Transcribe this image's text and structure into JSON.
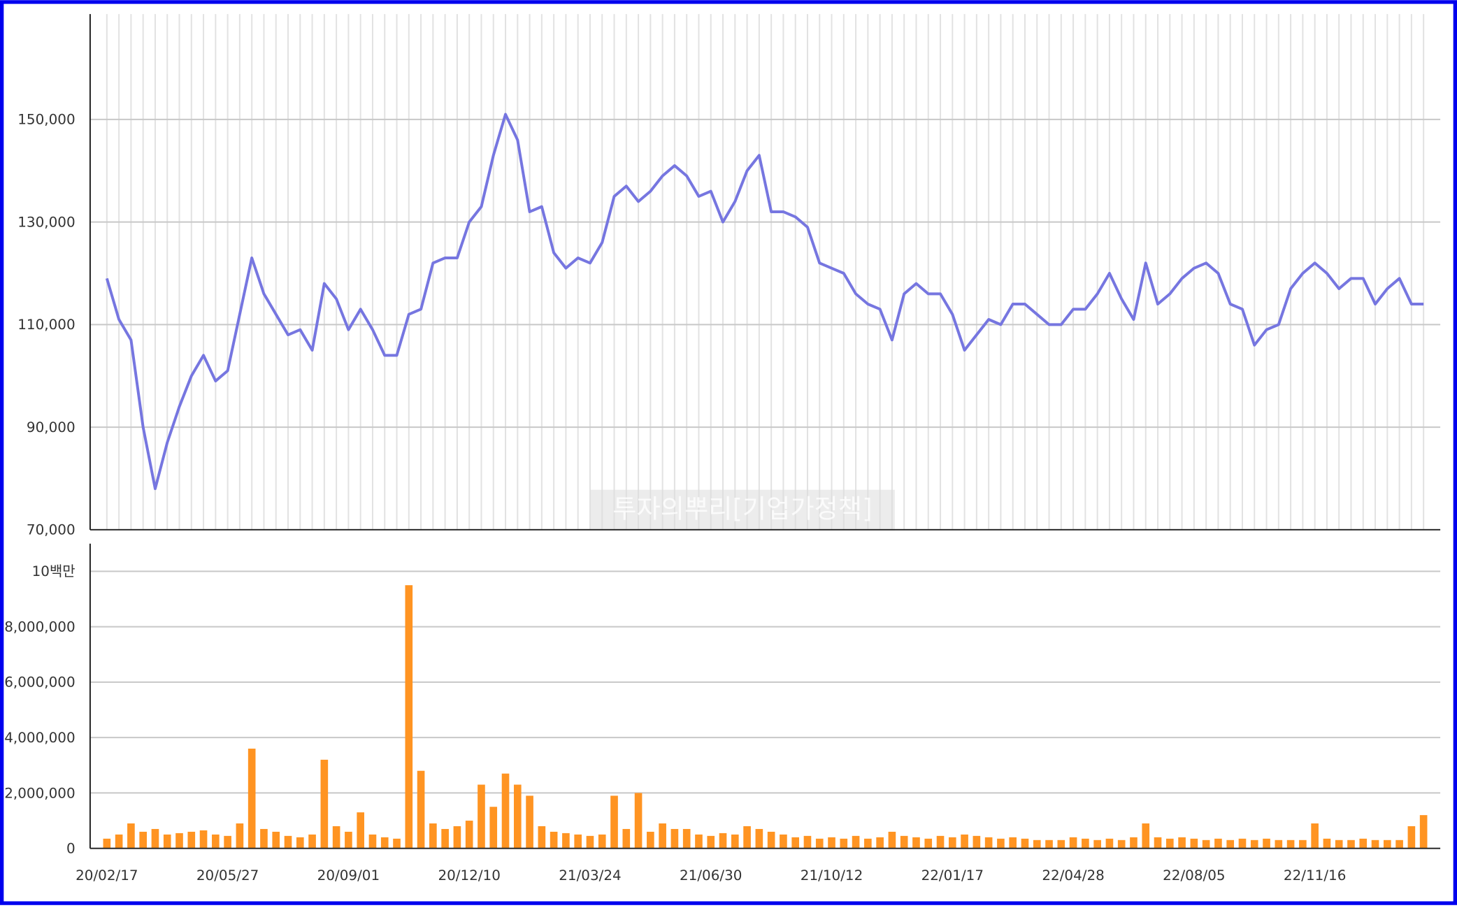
{
  "chart_data": [
    {
      "type": "line",
      "watermark": "투자의뿌리[기업가정책]",
      "categories": [
        "20/02/17",
        null,
        null,
        null,
        null,
        null,
        null,
        null,
        null,
        null,
        "20/05/27",
        null,
        null,
        null,
        null,
        null,
        null,
        null,
        null,
        null,
        "20/09/01",
        null,
        null,
        null,
        null,
        null,
        null,
        null,
        null,
        null,
        "20/12/10",
        null,
        null,
        null,
        null,
        null,
        null,
        null,
        null,
        null,
        "21/03/24",
        null,
        null,
        null,
        null,
        null,
        null,
        null,
        null,
        null,
        "21/06/30",
        null,
        null,
        null,
        null,
        null,
        null,
        null,
        null,
        null,
        "21/10/12",
        null,
        null,
        null,
        null,
        null,
        null,
        null,
        null,
        null,
        "22/01/17",
        null,
        null,
        null,
        null,
        null,
        null,
        null,
        null,
        null,
        "22/04/28",
        null,
        null,
        null,
        null,
        null,
        null,
        null,
        null,
        null,
        "22/08/05",
        null,
        null,
        null,
        null,
        null,
        null,
        null,
        null,
        null,
        "22/11/16",
        null,
        null,
        null,
        null,
        null,
        null,
        null,
        null,
        null
      ],
      "series": [
        {
          "color": "#7676e0",
          "values": [
            119000,
            111000,
            107000,
            90000,
            78000,
            87000,
            94000,
            100000,
            104000,
            99000,
            101000,
            112000,
            123000,
            116000,
            112000,
            108000,
            109000,
            105000,
            118000,
            115000,
            109000,
            113000,
            109000,
            104000,
            104000,
            112000,
            113000,
            122000,
            123000,
            123000,
            130000,
            133000,
            143000,
            151000,
            146000,
            132000,
            133000,
            124000,
            121000,
            123000,
            122000,
            126000,
            135000,
            137000,
            134000,
            136000,
            139000,
            141000,
            139000,
            135000,
            136000,
            130000,
            134000,
            140000,
            143000,
            132000,
            132000,
            131000,
            129000,
            122000,
            121000,
            120000,
            116000,
            114000,
            113000,
            107000,
            116000,
            118000,
            116000,
            116000,
            112000,
            105000,
            108000,
            111000,
            110000,
            114000,
            114000,
            112000,
            110000,
            110000,
            113000,
            113000,
            116000,
            120000,
            115000,
            111000,
            122000,
            114000,
            116000,
            119000,
            121000,
            122000,
            120000,
            114000,
            113000,
            106000,
            109000,
            110000,
            117000,
            120000,
            122000,
            120000,
            117000,
            119000,
            119000,
            114000,
            117000,
            119000,
            114000,
            114000
          ]
        }
      ],
      "ylim": [
        70000,
        170000
      ],
      "yticks": [
        {
          "value": 70000,
          "label": "70,000"
        },
        {
          "value": 90000,
          "label": "90,000"
        },
        {
          "value": 110000,
          "label": "110,000"
        },
        {
          "value": 130000,
          "label": "130,000"
        },
        {
          "value": 150000,
          "label": "150,000"
        }
      ],
      "grid": true
    },
    {
      "type": "bar",
      "series": [
        {
          "color": "#ff9422",
          "values": [
            350000,
            500000,
            900000,
            600000,
            700000,
            500000,
            550000,
            600000,
            650000,
            500000,
            450000,
            900000,
            3600000,
            700000,
            600000,
            450000,
            400000,
            500000,
            3200000,
            800000,
            600000,
            1300000,
            500000,
            400000,
            350000,
            9500000,
            2800000,
            900000,
            700000,
            800000,
            1000000,
            2300000,
            1500000,
            2700000,
            2300000,
            1900000,
            800000,
            600000,
            550000,
            500000,
            450000,
            500000,
            1900000,
            700000,
            2000000,
            600000,
            900000,
            700000,
            700000,
            500000,
            450000,
            550000,
            500000,
            800000,
            700000,
            600000,
            500000,
            400000,
            450000,
            350000,
            400000,
            350000,
            450000,
            350000,
            400000,
            600000,
            450000,
            400000,
            350000,
            450000,
            400000,
            500000,
            450000,
            400000,
            350000,
            400000,
            350000,
            300000,
            300000,
            300000,
            400000,
            350000,
            300000,
            350000,
            300000,
            400000,
            900000,
            400000,
            350000,
            400000,
            350000,
            300000,
            350000,
            300000,
            350000,
            300000,
            350000,
            300000,
            300000,
            300000,
            900000,
            350000,
            300000,
            300000,
            350000,
            300000,
            300000,
            300000,
            800000,
            1200000
          ]
        }
      ],
      "ylim": [
        0,
        11000000
      ],
      "yticks": [
        0,
        {
          "value": 2000000,
          "label": "2,000,000"
        },
        {
          "value": 4000000,
          "label": "4,000,000"
        },
        {
          "value": 6000000,
          "label": "6,000,000"
        },
        {
          "value": 8000000,
          "label": "8,000,000"
        },
        {
          "value": 10000000,
          "label": "10백만"
        }
      ],
      "grid": true
    }
  ]
}
